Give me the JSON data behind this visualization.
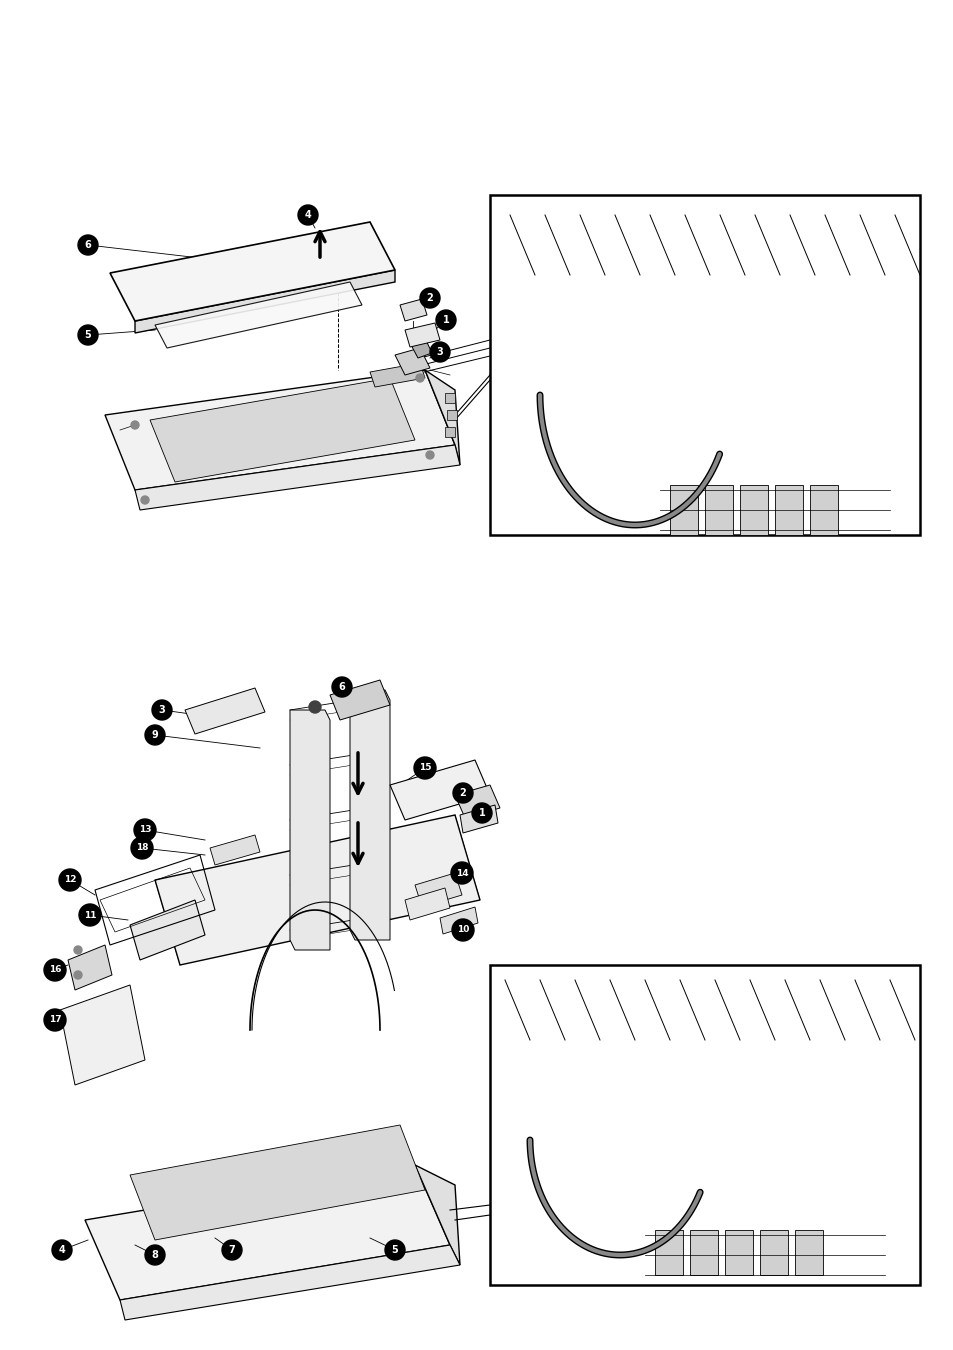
{
  "background_color": "#ffffff",
  "fig_width": 9.54,
  "fig_height": 13.5,
  "dpi": 100,
  "line_color": "#000000",
  "callout_bg": "#000000",
  "callout_fg": "#ffffff"
}
